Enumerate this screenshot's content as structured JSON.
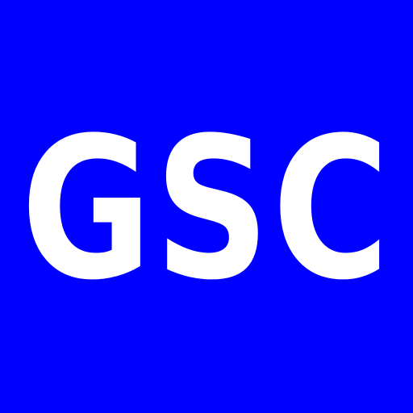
{
  "logo": {
    "text": "GSC",
    "background_color": "#0000FF",
    "text_color": "#FFFFFF"
  }
}
